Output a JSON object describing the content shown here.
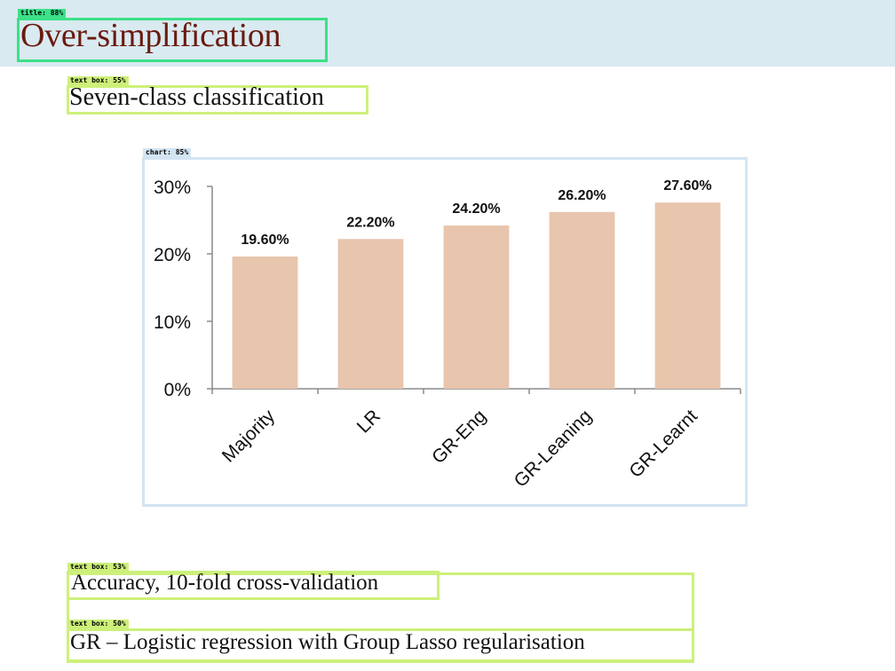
{
  "slide": {
    "title": "Over-simplification",
    "subtitle": "Seven-class classification",
    "notes": [
      "Accuracy, 10-fold cross-validation",
      "GR – Logistic regression with Group Lasso regularisation"
    ]
  },
  "annotations": {
    "title_tag": "title: 88%",
    "subtitle_tag": "text box: 55%",
    "chart_tag": "chart: 85%",
    "note1_tag": "text box: 53%",
    "note2_tag": "text box: 50%"
  },
  "colors": {
    "title": "#6a1a10",
    "header_band": "#d9eaf0",
    "bar": "#e8c5ad",
    "tag_green": "#3ce088",
    "tag_lime": "#cdf07a",
    "tag_blue": "#d3e4f2"
  },
  "chart_data": {
    "type": "bar",
    "title": "",
    "xlabel": "",
    "ylabel": "",
    "categories": [
      "Majority",
      "LR",
      "GR-Eng",
      "GR-Leaning",
      "GR-Learnt"
    ],
    "values": [
      19.6,
      22.2,
      24.2,
      26.2,
      27.6
    ],
    "data_labels": [
      "19.60%",
      "22.20%",
      "24.20%",
      "26.20%",
      "27.60%"
    ],
    "yticks": [
      0,
      10,
      20,
      30
    ],
    "ytick_labels": [
      "0%",
      "10%",
      "20%",
      "30%"
    ],
    "ylim": [
      0,
      30
    ],
    "grid": false,
    "legend": "none"
  }
}
